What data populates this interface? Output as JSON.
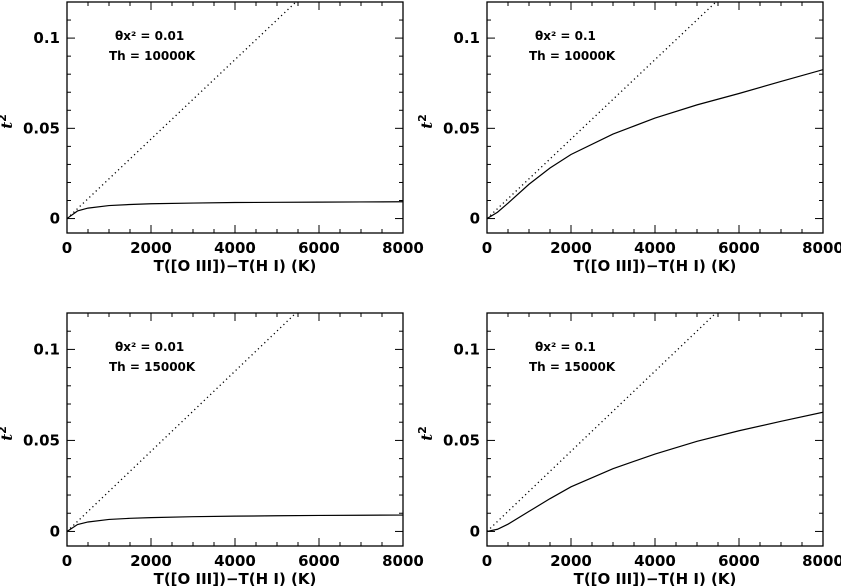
{
  "chart_data": [
    {
      "type": "line",
      "ylabel_symbol": "t",
      "ylabel_exp": "2",
      "xlabel": "T([O III])−T(H I) (K)",
      "xlim": [
        0,
        8000
      ],
      "ylim": [
        -0.008,
        0.12
      ],
      "xticks": [
        "0",
        "2000",
        "4000",
        "6000",
        "8000"
      ],
      "xtick_values": [
        0,
        2000,
        4000,
        6000,
        8000
      ],
      "yticks": [
        "0",
        "0.05",
        "0.1"
      ],
      "ytick_values": [
        0,
        0.05,
        0.1
      ],
      "annotation": {
        "theta_x2": "θx² = 0.01",
        "th": "Th = 10000K"
      },
      "series": [
        {
          "style": "dotted",
          "x": [
            0,
            5450
          ],
          "y": [
            0,
            0.12
          ]
        },
        {
          "style": "solid",
          "x": [
            0,
            250,
            500,
            1000,
            1500,
            2000,
            3000,
            4000,
            5000,
            6000,
            7000,
            8000
          ],
          "y": [
            0,
            0.0042,
            0.0058,
            0.0072,
            0.0078,
            0.0082,
            0.0086,
            0.0089,
            0.009,
            0.0091,
            0.0092,
            0.0093
          ]
        }
      ]
    },
    {
      "type": "line",
      "ylabel_symbol": "t",
      "ylabel_exp": "2",
      "xlabel": "T([O III])−T(H I) (K)",
      "xlim": [
        0,
        8000
      ],
      "ylim": [
        -0.008,
        0.12
      ],
      "xticks": [
        "0",
        "2000",
        "4000",
        "6000",
        "8000"
      ],
      "xtick_values": [
        0,
        2000,
        4000,
        6000,
        8000
      ],
      "yticks": [
        "0",
        "0.05",
        "0.1"
      ],
      "ytick_values": [
        0,
        0.05,
        0.1
      ],
      "annotation": {
        "theta_x2": "θx² = 0.1",
        "th": "Th = 10000K"
      },
      "series": [
        {
          "style": "dotted",
          "x": [
            0,
            5450
          ],
          "y": [
            0,
            0.12
          ]
        },
        {
          "style": "solid",
          "x": [
            0,
            250,
            500,
            1000,
            1500,
            2000,
            3000,
            4000,
            5000,
            6000,
            7000,
            8000
          ],
          "y": [
            0,
            0.0035,
            0.0085,
            0.019,
            0.028,
            0.0355,
            0.0468,
            0.0557,
            0.063,
            0.0693,
            0.076,
            0.0825
          ]
        }
      ]
    },
    {
      "type": "line",
      "ylabel_symbol": "t",
      "ylabel_exp": "2",
      "xlabel": "T([O III])−T(H I) (K)",
      "xlim": [
        0,
        8000
      ],
      "ylim": [
        -0.008,
        0.12
      ],
      "xticks": [
        "0",
        "2000",
        "4000",
        "6000",
        "8000"
      ],
      "xtick_values": [
        0,
        2000,
        4000,
        6000,
        8000
      ],
      "yticks": [
        "0",
        "0.05",
        "0.1"
      ],
      "ytick_values": [
        0,
        0.05,
        0.1
      ],
      "annotation": {
        "theta_x2": "θx² = 0.01",
        "th": "Th = 15000K"
      },
      "series": [
        {
          "style": "dotted",
          "x": [
            0,
            5450
          ],
          "y": [
            0,
            0.12
          ]
        },
        {
          "style": "solid",
          "x": [
            0,
            250,
            500,
            1000,
            1500,
            2000,
            3000,
            4000,
            5000,
            6000,
            7000,
            8000
          ],
          "y": [
            0,
            0.0038,
            0.0052,
            0.0066,
            0.0072,
            0.0076,
            0.0081,
            0.0084,
            0.0086,
            0.0088,
            0.0089,
            0.009
          ]
        }
      ]
    },
    {
      "type": "line",
      "ylabel_symbol": "t",
      "ylabel_exp": "2",
      "xlabel": "T([O III])−T(H I) (K)",
      "xlim": [
        0,
        8000
      ],
      "ylim": [
        -0.008,
        0.12
      ],
      "xticks": [
        "0",
        "2000",
        "4000",
        "6000",
        "8000"
      ],
      "xtick_values": [
        0,
        2000,
        4000,
        6000,
        8000
      ],
      "yticks": [
        "0",
        "0.05",
        "0.1"
      ],
      "ytick_values": [
        0,
        0.05,
        0.1
      ],
      "annotation": {
        "theta_x2": "θx² = 0.1",
        "th": "Th = 15000K"
      },
      "series": [
        {
          "style": "dotted",
          "x": [
            0,
            5450
          ],
          "y": [
            0,
            0.12
          ]
        },
        {
          "style": "solid",
          "x": [
            0,
            250,
            500,
            1000,
            1500,
            2000,
            3000,
            4000,
            5000,
            6000,
            7000,
            8000
          ],
          "y": [
            0,
            0.0012,
            0.004,
            0.011,
            0.018,
            0.0245,
            0.0345,
            0.0425,
            0.0495,
            0.0553,
            0.0605,
            0.0655
          ]
        }
      ]
    }
  ]
}
